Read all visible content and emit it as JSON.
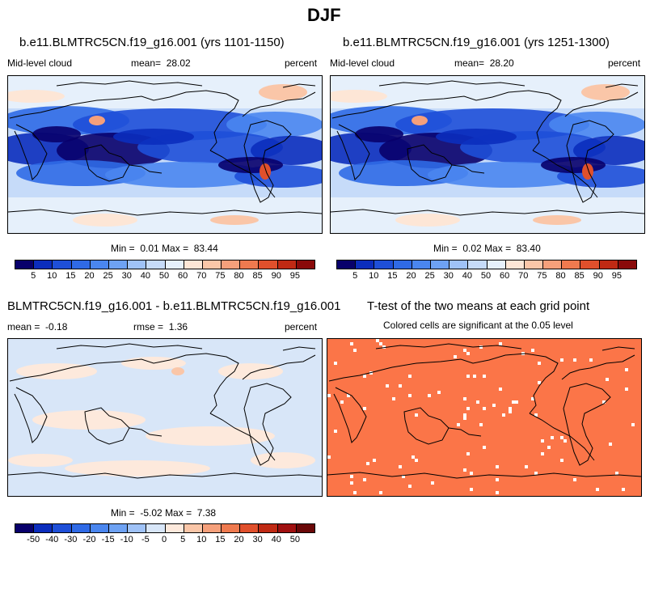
{
  "main_title": "DJF",
  "top_left": {
    "title": "b.e11.BLMTRC5CN.f19_g16.001 (yrs 1101-1150)",
    "variable": "Mid-level cloud",
    "mean_label": "mean=",
    "mean_value": "28.02",
    "units": "percent",
    "min_label": "Min =",
    "min_value": "0.01",
    "max_label": "Max =",
    "max_value": "83.44"
  },
  "top_right": {
    "title": "b.e11.BLMTRC5CN.f19_g16.001 (yrs 1251-1300)",
    "variable": "Mid-level cloud",
    "mean_label": "mean=",
    "mean_value": "28.20",
    "units": "percent",
    "min_label": "Min =",
    "min_value": "0.02",
    "max_label": "Max =",
    "max_value": "83.40"
  },
  "bottom_left": {
    "title": "BLMTRC5CN.f19_g16.001 - b.e11.BLMTRC5CN.f19_g16.001",
    "mean_label": "mean =",
    "mean_value": "-0.18",
    "rmse_label": "rmse =",
    "rmse_value": "1.36",
    "units": "percent",
    "min_label": "Min =",
    "min_value": "-5.02",
    "max_label": "Max =",
    "max_value": "7.38"
  },
  "bottom_right": {
    "title": "T-test of the two means at each grid point",
    "subtitle": "Colored cells are significant at the 0.05 level"
  },
  "colorbar_main": {
    "labels": [
      "5",
      "10",
      "15",
      "20",
      "25",
      "30",
      "40",
      "50",
      "60",
      "70",
      "75",
      "80",
      "85",
      "90",
      "95"
    ],
    "colors": [
      "#08006b",
      "#0b2dbd",
      "#1e4fd8",
      "#2f6ae6",
      "#4a86ef",
      "#6ea2f3",
      "#9fc2f7",
      "#c6dbf9",
      "#e6f0fb",
      "#fde6d6",
      "#fac6a8",
      "#f5a07b",
      "#ef7a4f",
      "#e0502c",
      "#c02a14",
      "#8a0a0a"
    ]
  },
  "colorbar_diff": {
    "labels": [
      "-50",
      "-40",
      "-30",
      "-20",
      "-15",
      "-10",
      "-5",
      "0",
      "5",
      "10",
      "15",
      "20",
      "30",
      "40",
      "50"
    ],
    "colors": [
      "#08006b",
      "#0b2dbd",
      "#1e4fd8",
      "#2f6ae6",
      "#4a86ef",
      "#6ea2f3",
      "#9fc2f7",
      "#d8e6f8",
      "#fde9dc",
      "#fac6a8",
      "#f5a07b",
      "#ef7a4f",
      "#e0502c",
      "#c02a14",
      "#a01010",
      "#6a0808"
    ]
  },
  "colors": {
    "ttest_fill": "#fb7548",
    "land_line": "#000000"
  }
}
